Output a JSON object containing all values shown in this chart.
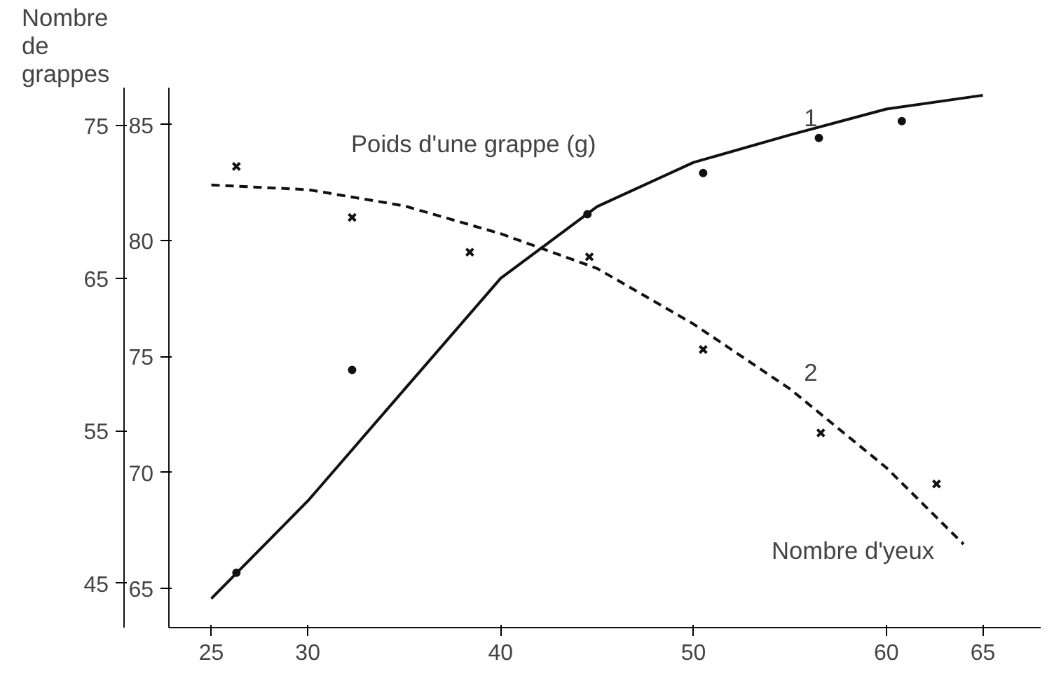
{
  "chart_data": {
    "type": "scatter",
    "ylabel": "Poids d'une grappe (g)",
    "y2label": "Nombre de grappes",
    "xlabel": "Nombre d'yeux",
    "xlim": [
      22.8,
      68
    ],
    "xticks": [
      25,
      30,
      40,
      50,
      60,
      65
    ],
    "ylim": [
      63.3,
      86.6
    ],
    "yticks": [
      65,
      70,
      75,
      80,
      85
    ],
    "y2lim": [
      42.1,
      77.5
    ],
    "y2ticks": [
      45,
      55,
      65,
      75
    ],
    "grid": false,
    "series": [
      {
        "axis": "y2",
        "marker": "circle",
        "color": "#111111",
        "x": [
          26.3,
          32.3,
          44.5,
          50.5,
          56.5,
          60.8
        ],
        "values": [
          45.7,
          59.0,
          69.2,
          71.9,
          74.2,
          75.3
        ]
      },
      {
        "type": "line",
        "axis": "y2",
        "name": "1",
        "line_style": "solid",
        "marker": "none",
        "color": "#111111",
        "x": [
          25,
          30,
          35,
          40,
          45,
          50,
          55,
          60,
          65
        ],
        "values": [
          44.0,
          50.4,
          57.7,
          65.0,
          69.7,
          72.6,
          74.4,
          76.1,
          77.0
        ]
      },
      {
        "axis": "y",
        "marker": "cross",
        "color": "#111111",
        "x": [
          26.3,
          32.3,
          38.4,
          44.6,
          50.5,
          56.6,
          62.6
        ],
        "values": [
          83.2,
          81.0,
          79.5,
          79.3,
          75.3,
          71.7,
          69.5
        ]
      },
      {
        "type": "line",
        "axis": "y",
        "name": "2",
        "line_style": "dashed",
        "marker": "none",
        "color": "#111111",
        "x": [
          25,
          30,
          35,
          40,
          45,
          50,
          55,
          60,
          64
        ],
        "values": [
          82.4,
          82.2,
          81.5,
          80.3,
          78.8,
          76.4,
          73.6,
          70.2,
          66.9
        ]
      }
    ]
  }
}
